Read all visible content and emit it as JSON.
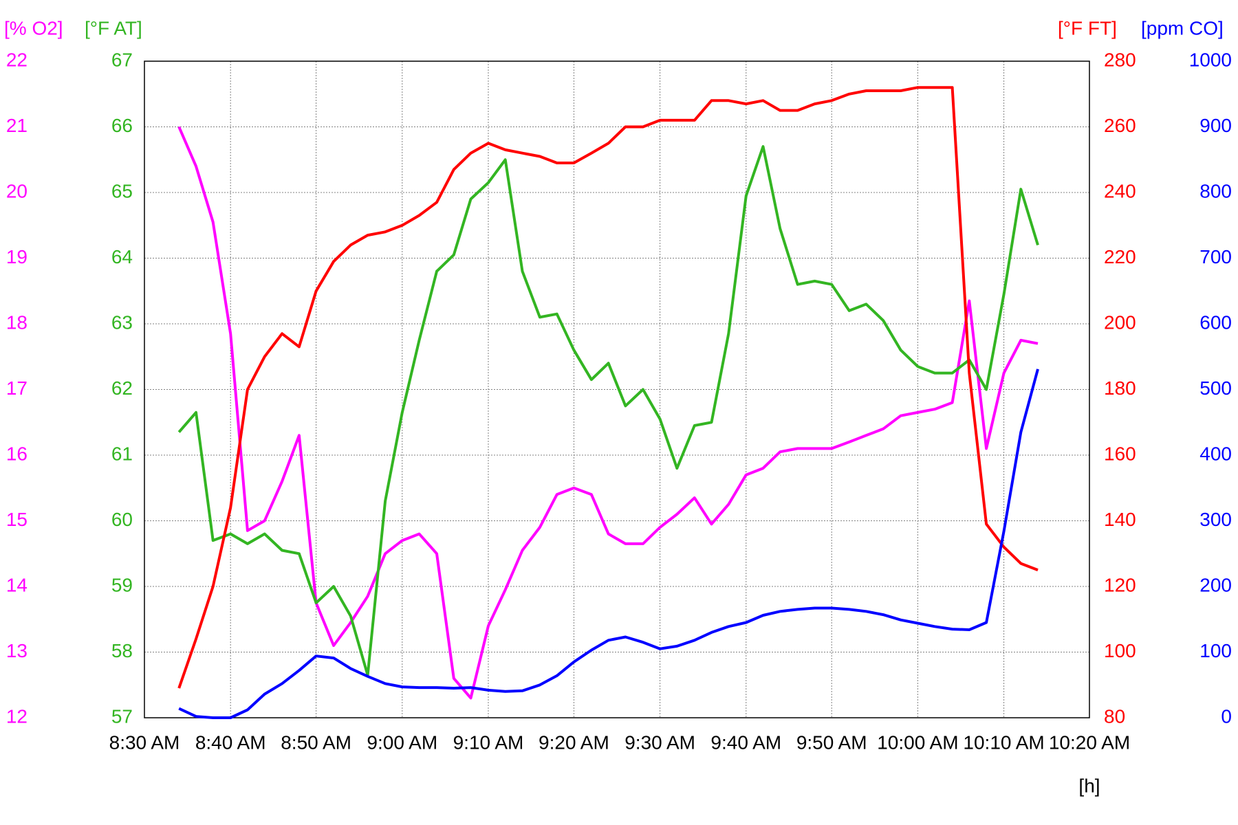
{
  "chart_data": {
    "type": "line",
    "xlabel": "[h]",
    "grid": true,
    "x": [
      8.567,
      8.6,
      8.633,
      8.667,
      8.7,
      8.733,
      8.767,
      8.8,
      8.833,
      8.867,
      8.9,
      8.933,
      8.967,
      9.0,
      9.033,
      9.067,
      9.1,
      9.133,
      9.167,
      9.2,
      9.233,
      9.267,
      9.3,
      9.333,
      9.367,
      9.4,
      9.433,
      9.467,
      9.5,
      9.533,
      9.567,
      9.6,
      9.633,
      9.667,
      9.7,
      9.733,
      9.767,
      9.8,
      9.833,
      9.867,
      9.9,
      9.933,
      9.967,
      10.0,
      10.033,
      10.067,
      10.1,
      10.133,
      10.167,
      10.2,
      10.233
    ],
    "xlim": [
      8.5,
      10.333
    ],
    "xticks": [
      {
        "value": 8.5,
        "label": "8:30 AM"
      },
      {
        "value": 8.667,
        "label": "8:40 AM"
      },
      {
        "value": 8.833,
        "label": "8:50 AM"
      },
      {
        "value": 9.0,
        "label": "9:00 AM"
      },
      {
        "value": 9.167,
        "label": "9:10 AM"
      },
      {
        "value": 9.333,
        "label": "9:20 AM"
      },
      {
        "value": 9.5,
        "label": "9:30 AM"
      },
      {
        "value": 9.667,
        "label": "9:40 AM"
      },
      {
        "value": 9.833,
        "label": "9:50 AM"
      },
      {
        "value": 10.0,
        "label": "10:00 AM"
      },
      {
        "value": 10.167,
        "label": "10:10 AM"
      },
      {
        "value": 10.333,
        "label": "10:20 AM"
      }
    ],
    "series": [
      {
        "name": "[% O2]",
        "color": "#ff00ff",
        "side": "left",
        "ylim": [
          12,
          22
        ],
        "yticks": [
          12,
          13,
          14,
          15,
          16,
          17,
          18,
          19,
          20,
          21,
          22
        ],
        "values": [
          21.0,
          20.4,
          19.55,
          17.85,
          14.85,
          15.0,
          15.6,
          16.3,
          13.75,
          13.1,
          13.45,
          13.85,
          14.5,
          14.7,
          14.8,
          14.5,
          12.6,
          12.3,
          13.4,
          13.95,
          14.55,
          14.9,
          15.4,
          15.5,
          15.4,
          14.8,
          14.65,
          14.65,
          14.9,
          15.1,
          15.35,
          14.95,
          15.25,
          15.7,
          15.8,
          16.05,
          16.1,
          16.1,
          16.1,
          16.2,
          16.3,
          16.4,
          16.6,
          16.65,
          16.7,
          16.8,
          18.35,
          16.1,
          17.25,
          17.75,
          17.7
        ]
      },
      {
        "name": "[°F AT]",
        "color": "#33b522",
        "side": "left",
        "ylim": [
          57,
          67
        ],
        "yticks": [
          57,
          58,
          59,
          60,
          61,
          62,
          63,
          64,
          65,
          66,
          67
        ],
        "values": [
          61.35,
          61.65,
          59.7,
          59.8,
          59.65,
          59.8,
          59.55,
          59.5,
          58.75,
          59.0,
          58.55,
          57.65,
          60.3,
          61.65,
          62.75,
          63.8,
          64.05,
          64.9,
          65.15,
          65.5,
          63.8,
          63.1,
          63.15,
          62.6,
          62.15,
          62.4,
          61.75,
          62.0,
          61.55,
          60.8,
          61.45,
          61.5,
          62.85,
          64.95,
          65.7,
          64.45,
          63.6,
          63.65,
          63.6,
          63.2,
          63.3,
          63.05,
          62.6,
          62.35,
          62.25,
          62.25,
          62.45,
          62.0,
          63.45,
          65.05,
          64.2
        ]
      },
      {
        "name": "[°F FT]",
        "color": "#ff0000",
        "side": "right",
        "ylim": [
          80,
          280
        ],
        "yticks": [
          80,
          100,
          120,
          140,
          160,
          180,
          200,
          220,
          240,
          260,
          280
        ],
        "values": [
          89,
          104,
          120,
          144,
          180,
          190,
          197,
          193,
          210,
          219,
          224,
          227,
          228,
          230,
          233,
          237,
          247,
          252,
          255,
          253,
          252,
          251,
          249,
          249,
          252,
          255,
          260,
          260,
          262,
          262,
          262,
          268,
          268,
          267,
          268,
          265,
          265,
          267,
          268,
          270,
          271,
          271,
          271,
          272,
          272,
          272,
          185,
          139,
          132,
          127,
          125
        ]
      },
      {
        "name": "[ppm CO]",
        "color": "#0000ff",
        "side": "right",
        "ylim": [
          0,
          1000
        ],
        "yticks": [
          0,
          100,
          200,
          300,
          400,
          500,
          600,
          700,
          800,
          900,
          1000
        ],
        "values": [
          14,
          2,
          0,
          0,
          12,
          36,
          52,
          72,
          94,
          91,
          75,
          63,
          52,
          47,
          46,
          46,
          45,
          46,
          42,
          40,
          41,
          50,
          64,
          85,
          103,
          118,
          123,
          115,
          105,
          109,
          118,
          130,
          139,
          145,
          156,
          162,
          165,
          167,
          167,
          165,
          162,
          157,
          149,
          144,
          139,
          135,
          134,
          145,
          284,
          435,
          531
        ]
      }
    ]
  }
}
